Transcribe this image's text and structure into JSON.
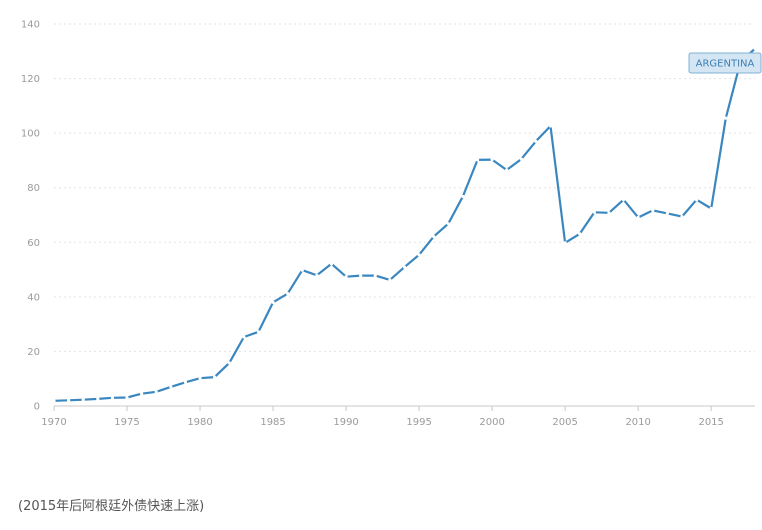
{
  "caption": "(2015年后阿根廷外债快速上涨)",
  "chart_data": {
    "type": "line",
    "title": "",
    "xlabel": "",
    "ylabel": "",
    "xlim": [
      1970,
      2018
    ],
    "ylim": [
      0,
      140
    ],
    "y_ticks": [
      "0",
      "20",
      "40",
      "60",
      "80",
      "100",
      "120",
      "140"
    ],
    "x_ticks": [
      "1970",
      "1975",
      "1980",
      "1985",
      "1990",
      "1995",
      "2000",
      "2005",
      "2010",
      "2015"
    ],
    "grid": true,
    "legend": "none",
    "colors": {
      "series": "#3a87c0",
      "grid": "#e3e3e3",
      "axis": "#c8c8c8"
    },
    "callout": {
      "label": "ARGENTINA"
    },
    "x": [
      1970,
      1971,
      1972,
      1973,
      1974,
      1975,
      1976,
      1977,
      1978,
      1979,
      1980,
      1981,
      1982,
      1983,
      1984,
      1985,
      1986,
      1987,
      1988,
      1989,
      1990,
      1991,
      1992,
      1993,
      1994,
      1995,
      1996,
      1997,
      1998,
      1999,
      2000,
      2001,
      2002,
      2003,
      2004,
      2005,
      2006,
      2007,
      2008,
      2009,
      2010,
      2011,
      2012,
      2013,
      2014,
      2015,
      2016,
      2017,
      2018
    ],
    "series": [
      {
        "values": [
          1.9,
          2.1,
          2.3,
          2.6,
          3.0,
          3.1,
          4.5,
          5.2,
          7.0,
          8.7,
          10.2,
          10.6,
          15.8,
          25.3,
          27.2,
          38.0,
          41.2,
          49.8,
          47.9,
          52.1,
          47.4,
          47.8,
          47.8,
          46.2,
          50.9,
          55.4,
          62.1,
          66.8,
          76.8,
          90.2,
          90.3,
          86.5,
          90.5,
          97.0,
          102.6,
          59.8,
          63.1,
          71.0,
          70.8,
          75.6,
          69.1,
          71.7,
          70.6,
          69.4,
          75.6,
          72.4,
          105.5,
          126.0,
          131.0
        ]
      }
    ]
  }
}
